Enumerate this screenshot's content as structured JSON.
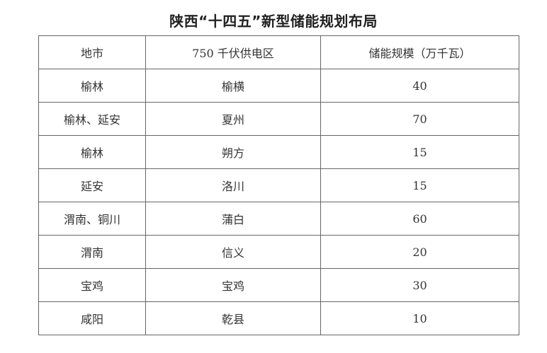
{
  "title": "陕西“十四五”新型储能规划布局",
  "table": {
    "headers": [
      "地市",
      "750 千伏供电区",
      "储能规模（万千瓦）"
    ],
    "rows": [
      [
        "榆林",
        "榆横",
        "40"
      ],
      [
        "榆林、延安",
        "夏州",
        "70"
      ],
      [
        "榆林",
        "朔方",
        "15"
      ],
      [
        "延安",
        "洛川",
        "15"
      ],
      [
        "渭南、铜川",
        "蒲白",
        "60"
      ],
      [
        "渭南",
        "信义",
        "20"
      ],
      [
        "宝鸡",
        "宝鸡",
        "30"
      ],
      [
        "咸阳",
        "乾县",
        "10"
      ]
    ]
  }
}
